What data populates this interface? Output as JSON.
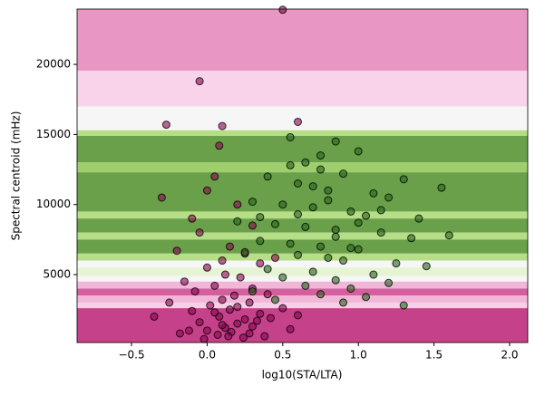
{
  "chart_data": {
    "type": "scatter",
    "xlabel": "log10(STA/LTA)",
    "ylabel": "Spectral centroid (mHz)",
    "xlim": [
      -0.86,
      2.12
    ],
    "ylim": [
      150,
      23950
    ],
    "xticks": [
      {
        "value": -0.5,
        "label": "−0.5"
      },
      {
        "value": 0,
        "label": "0.0"
      },
      0.5,
      {
        "value": 1,
        "label": "1.0"
      },
      1.5,
      {
        "value": 2,
        "label": "2.0"
      }
    ],
    "yticks": [
      5000,
      10000,
      15000,
      20000
    ],
    "alpha": 0.6,
    "regions": [
      {
        "ylim": [
          19550,
          23950
        ],
        "color": "#e897c4"
      },
      {
        "ylim": [
          17000,
          19550
        ],
        "color": "#f8d3e9"
      },
      {
        "ylim": [
          15300,
          17000
        ],
        "color": "#f6f6f6"
      },
      {
        "ylim": [
          14900,
          15300
        ],
        "color": "#b6de87"
      },
      {
        "ylim": [
          13000,
          14900
        ],
        "color": "#6aa04a"
      },
      {
        "ylim": [
          12300,
          13000
        ],
        "color": "#9fcf6c"
      },
      {
        "ylim": [
          9500,
          12300
        ],
        "color": "#6aa04a"
      },
      {
        "ylim": [
          9000,
          9500
        ],
        "color": "#b6de87"
      },
      {
        "ylim": [
          8000,
          9000
        ],
        "color": "#6aa04a"
      },
      {
        "ylim": [
          7500,
          8000
        ],
        "color": "#b6de87"
      },
      {
        "ylim": [
          6500,
          7500
        ],
        "color": "#6aa04a"
      },
      {
        "ylim": [
          6000,
          6500
        ],
        "color": "#b6de87"
      },
      {
        "ylim": [
          5500,
          6000
        ],
        "color": "#f6f6f6"
      },
      {
        "ylim": [
          4900,
          5500
        ],
        "color": "#e6f4d4"
      },
      {
        "ylim": [
          4500,
          4900
        ],
        "color": "#f6f6f6"
      },
      {
        "ylim": [
          4000,
          4500
        ],
        "color": "#f1b6d8"
      },
      {
        "ylim": [
          3500,
          4000
        ],
        "color": "#d45f9e"
      },
      {
        "ylim": [
          3000,
          3500
        ],
        "color": "#f1b6d8"
      },
      {
        "ylim": [
          2600,
          3000
        ],
        "color": "#f6d0e6"
      },
      {
        "ylim": [
          150,
          2600
        ],
        "color": "#c5428a"
      }
    ],
    "series": [
      {
        "color": "#8e0152",
        "x": [
          0.5,
          -0.05,
          -0.27,
          0.1,
          0.6,
          -0.3,
          0.0,
          0.08,
          -0.1,
          0.05,
          0.2,
          -0.05,
          0.3,
          0.15,
          0.25,
          0.1,
          -0.2,
          0.0,
          0.35,
          0.45,
          -0.15,
          0.12,
          0.22,
          0.05,
          -0.08,
          0.3,
          0.18,
          0.4,
          -0.25,
          0.1,
          0.02,
          0.28,
          0.5,
          -0.35,
          -0.1,
          0.15,
          0.35,
          0.08,
          0.25,
          -0.05,
          0.2,
          0.42,
          0.12,
          0.0,
          0.3,
          0.55,
          -0.18,
          0.07,
          0.16,
          0.38,
          0.24,
          -0.02,
          0.1,
          0.33,
          0.6,
          0.05,
          0.2,
          -0.12,
          0.28,
          0.14
        ],
        "values": [
          23900,
          18800,
          15700,
          15600,
          15900,
          10500,
          11000,
          14200,
          9000,
          12000,
          10000,
          8000,
          8500,
          7000,
          6500,
          6000,
          6700,
          5500,
          5800,
          6200,
          4500,
          5000,
          4800,
          4200,
          3800,
          4000,
          3500,
          3600,
          3000,
          3200,
          2800,
          3000,
          2600,
          2000,
          2400,
          2500,
          2200,
          2000,
          1800,
          1600,
          1500,
          1900,
          1200,
          1000,
          1300,
          1100,
          800,
          700,
          900,
          600,
          500,
          400,
          1400,
          1700,
          2100,
          2300,
          2700,
          1000,
          800,
          600
        ]
      },
      {
        "color": "#276419",
        "x": [
          0.55,
          0.85,
          1.0,
          0.65,
          0.75,
          0.9,
          1.3,
          1.55,
          1.6,
          0.4,
          0.6,
          0.8,
          1.1,
          1.2,
          0.3,
          0.5,
          0.7,
          0.95,
          1.05,
          1.4,
          0.2,
          0.45,
          0.65,
          0.85,
          1.15,
          1.35,
          0.35,
          0.55,
          0.75,
          1.0,
          0.25,
          0.6,
          0.8,
          0.9,
          1.25,
          1.45,
          0.4,
          0.7,
          1.1,
          0.5,
          0.85,
          1.2,
          0.65,
          0.95,
          0.3,
          0.75,
          1.05,
          0.45,
          0.9,
          1.3,
          0.6,
          0.8,
          1.0,
          0.7,
          0.55,
          1.15,
          0.85,
          0.35,
          0.95,
          0.75
        ],
        "values": [
          14800,
          14500,
          13800,
          13000,
          12500,
          12200,
          11800,
          11200,
          7800,
          12000,
          11500,
          11000,
          10800,
          10500,
          10200,
          10000,
          9800,
          9500,
          9200,
          9000,
          8800,
          8600,
          8400,
          8200,
          8000,
          7600,
          7400,
          7200,
          7000,
          6800,
          6600,
          6400,
          6200,
          6000,
          5800,
          5600,
          5400,
          5200,
          5000,
          4800,
          4600,
          4400,
          4200,
          4000,
          3800,
          3600,
          3400,
          3200,
          3000,
          2800,
          9300,
          10300,
          8700,
          11300,
          12800,
          9600,
          7700,
          9100,
          6900,
          13500
        ]
      }
    ]
  }
}
